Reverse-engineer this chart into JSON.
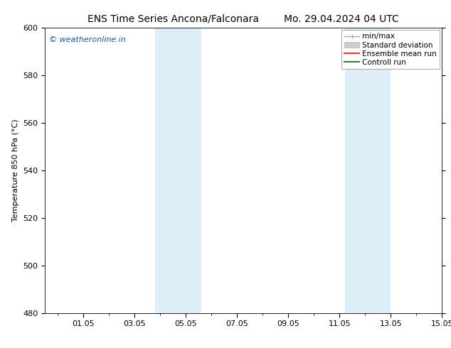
{
  "title": "ENS Time Series Ancona/Falconara",
  "title2": "Mo. 29.04.2024 04 UTC",
  "ylabel": "Temperature 850 hPa (°C)",
  "xlim_start": -0.5,
  "xlim_end": 15.0,
  "ylim": [
    480,
    600
  ],
  "yticks": [
    480,
    500,
    520,
    540,
    560,
    580,
    600
  ],
  "xtick_positions": [
    1,
    3,
    5,
    7,
    9,
    11,
    13,
    15
  ],
  "xtick_labels": [
    "01.05",
    "03.05",
    "05.05",
    "07.05",
    "09.05",
    "11.05",
    "13.05",
    "15.05"
  ],
  "shaded_bands": [
    {
      "x_start": 3.8,
      "x_end": 5.6
    },
    {
      "x_start": 11.2,
      "x_end": 13.0
    }
  ],
  "shaded_color": "#deeef8",
  "bg_color": "#ffffff",
  "watermark_text": "© weatheronline.in",
  "watermark_color": "#1155cc",
  "legend_items": [
    {
      "label": "min/max",
      "color": "#aaaaaa",
      "style": "line_with_caps"
    },
    {
      "label": "Standard deviation",
      "color": "#cccccc",
      "style": "thick_line"
    },
    {
      "label": "Ensemble mean run",
      "color": "#ff0000",
      "style": "line"
    },
    {
      "label": "Controll run",
      "color": "#006600",
      "style": "line"
    }
  ],
  "title_fontsize": 10,
  "tick_fontsize": 8,
  "ylabel_fontsize": 8,
  "legend_fontsize": 7.5
}
